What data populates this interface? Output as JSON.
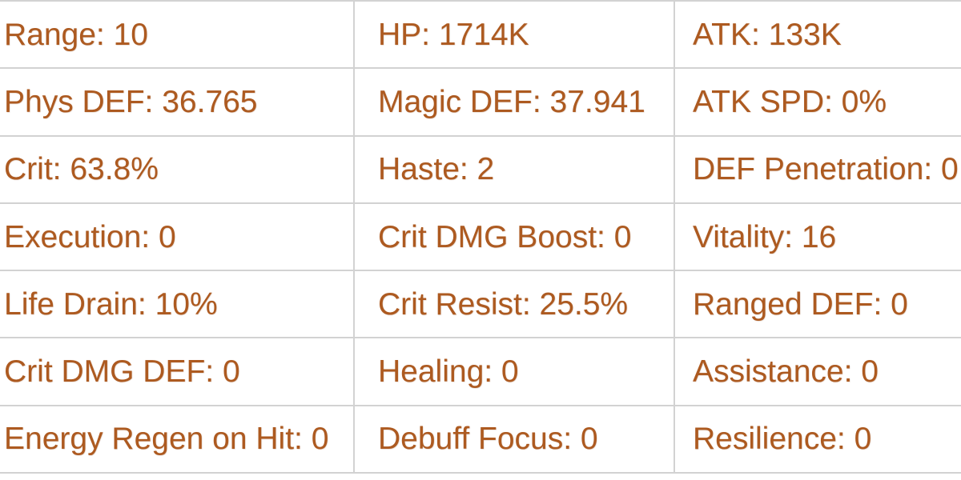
{
  "theme": {
    "text_color": "#ad5a20",
    "border_color": "#d2d2d2",
    "background_color": "#ffffff"
  },
  "stats_table": {
    "rows": [
      {
        "cells": [
          "Range: 10",
          "HP: 1714K",
          "ATK: 133K"
        ]
      },
      {
        "cells": [
          "Phys DEF: 36.765",
          "Magic DEF: 37.941",
          "ATK SPD: 0%"
        ]
      },
      {
        "cells": [
          "Crit: 63.8%",
          "Haste: 2",
          "DEF Penetration: 0"
        ]
      },
      {
        "cells": [
          "Execution: 0",
          "Crit DMG Boost: 0",
          "Vitality: 16"
        ]
      },
      {
        "cells": [
          "Life Drain: 10%",
          "Crit Resist: 25.5%",
          "Ranged DEF: 0"
        ]
      },
      {
        "cells": [
          "Crit DMG DEF: 0",
          "Healing: 0",
          "Assistance: 0"
        ]
      },
      {
        "cells": [
          "Energy Regen on Hit: 0",
          "Debuff Focus: 0",
          "Resilience: 0"
        ]
      }
    ]
  }
}
